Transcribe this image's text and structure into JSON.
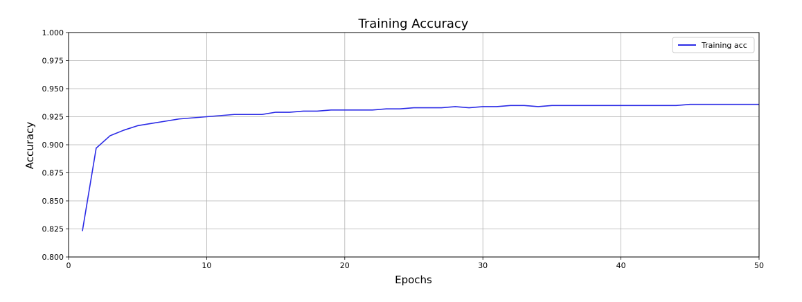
{
  "chart_data": {
    "type": "line",
    "title": "Training Accuracy",
    "xlabel": "Epochs",
    "ylabel": "Accuracy",
    "xlim": [
      0,
      50
    ],
    "ylim": [
      0.8,
      1.0
    ],
    "grid": true,
    "legend_position": "top-right",
    "x_ticks": [
      0,
      10,
      20,
      30,
      40,
      50
    ],
    "x_tick_labels": [
      "0",
      "10",
      "20",
      "30",
      "40",
      "50"
    ],
    "y_ticks": [
      0.8,
      0.825,
      0.85,
      0.875,
      0.9,
      0.925,
      0.95,
      0.975,
      1.0
    ],
    "y_tick_labels": [
      "0.800",
      "0.825",
      "0.850",
      "0.875",
      "0.900",
      "0.925",
      "0.950",
      "0.975",
      "1.000"
    ],
    "series": [
      {
        "name": "Training acc",
        "color": "#2a2ae6",
        "x": [
          1,
          2,
          3,
          4,
          5,
          6,
          7,
          8,
          9,
          10,
          11,
          12,
          13,
          14,
          15,
          16,
          17,
          18,
          19,
          20,
          21,
          22,
          23,
          24,
          25,
          26,
          27,
          28,
          29,
          30,
          31,
          32,
          33,
          34,
          35,
          36,
          37,
          38,
          39,
          40,
          41,
          42,
          43,
          44,
          45,
          46,
          47,
          48,
          49,
          50
        ],
        "values": [
          0.823,
          0.897,
          0.908,
          0.913,
          0.917,
          0.919,
          0.921,
          0.923,
          0.924,
          0.925,
          0.926,
          0.927,
          0.927,
          0.927,
          0.929,
          0.929,
          0.93,
          0.93,
          0.931,
          0.931,
          0.931,
          0.931,
          0.932,
          0.932,
          0.933,
          0.933,
          0.933,
          0.934,
          0.933,
          0.934,
          0.934,
          0.935,
          0.935,
          0.934,
          0.935,
          0.935,
          0.935,
          0.935,
          0.935,
          0.935,
          0.935,
          0.935,
          0.935,
          0.935,
          0.936,
          0.936,
          0.936,
          0.936,
          0.936,
          0.936
        ]
      }
    ]
  }
}
